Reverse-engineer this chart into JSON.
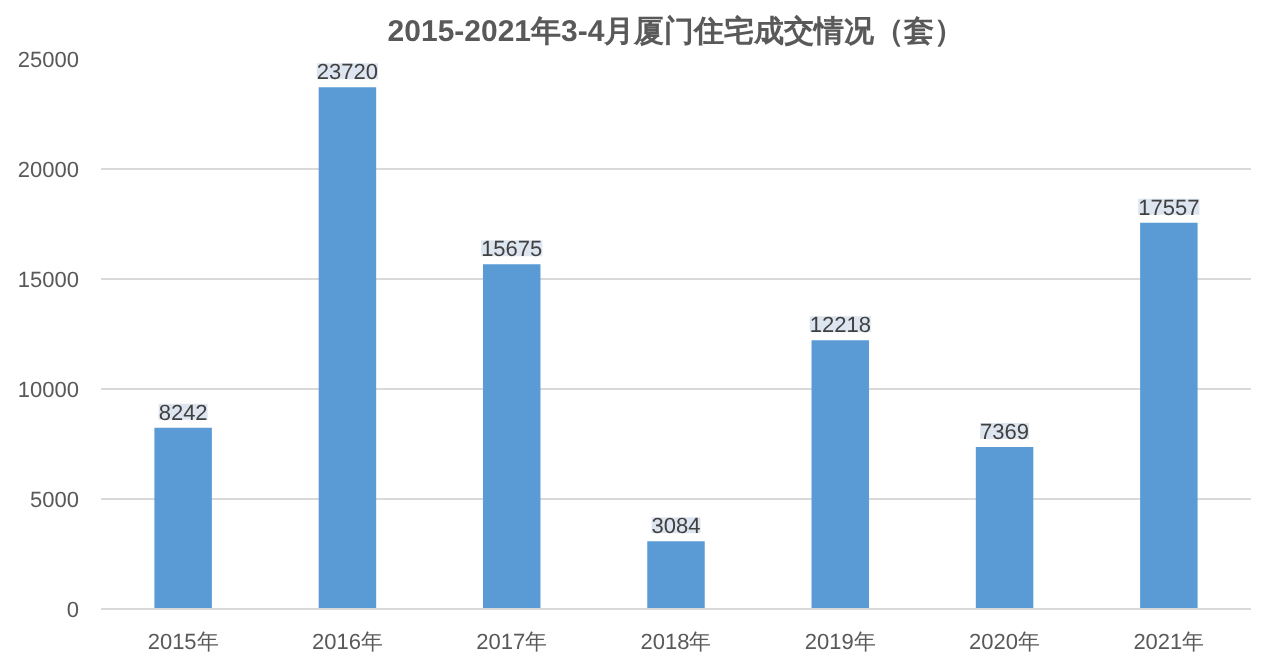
{
  "chart_data": {
    "type": "bar",
    "title": "2015-2021年3-4月厦门住宅成交情况（套）",
    "categories": [
      "2015年",
      "2016年",
      "2017年",
      "2018年",
      "2019年",
      "2020年",
      "2021年"
    ],
    "values": [
      8242,
      23720,
      15675,
      3084,
      12218,
      7369,
      17557
    ],
    "color": "#5b9bd5",
    "ylim": [
      0,
      25000
    ],
    "yticks": [
      0,
      5000,
      10000,
      15000,
      20000,
      25000
    ],
    "grid": "y",
    "data_labels": true
  }
}
